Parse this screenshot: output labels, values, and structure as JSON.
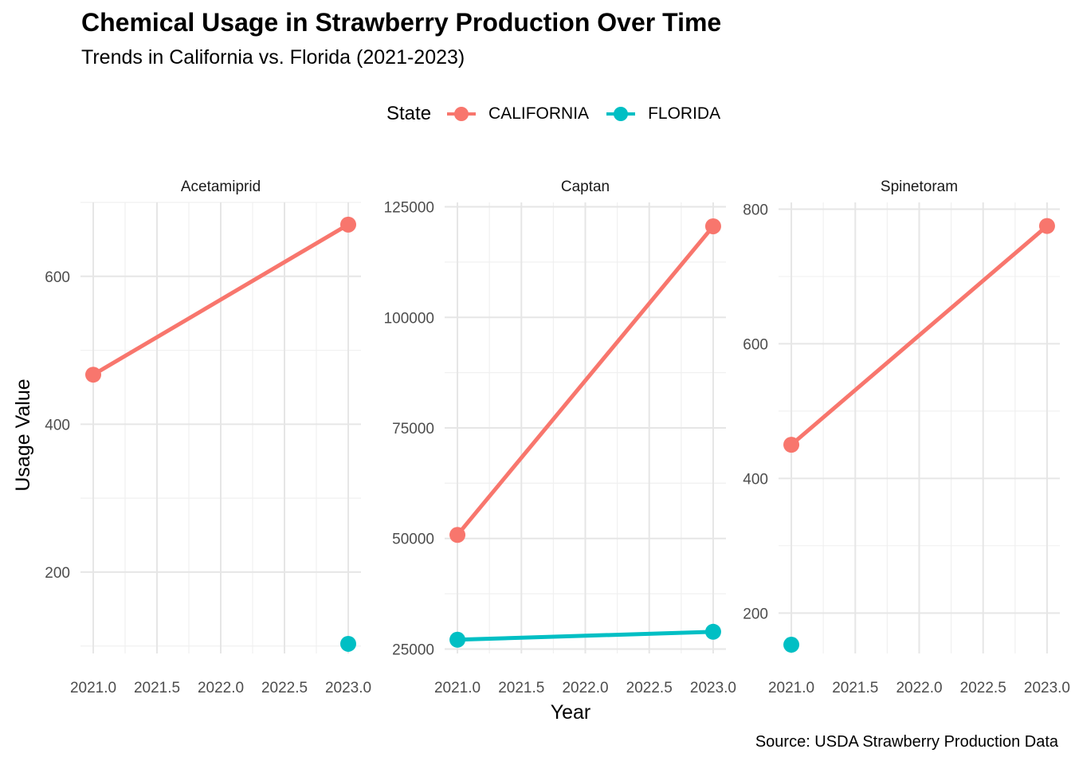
{
  "chart_data": {
    "type": "line",
    "title": "Chemical Usage in Strawberry Production Over Time",
    "subtitle": "Trends in California vs. Florida (2021-2023)",
    "xlabel": "Year",
    "ylabel": "Usage Value",
    "caption": "Source: USDA Strawberry Production Data",
    "legend": {
      "title": "State",
      "position": "top",
      "entries": [
        {
          "name": "CALIFORNIA",
          "color": "#F8766D"
        },
        {
          "name": "FLORIDA",
          "color": "#00BFC4"
        }
      ]
    },
    "x_ticks": [
      "2021.0",
      "2021.5",
      "2022.0",
      "2022.5",
      "2023.0"
    ],
    "xlim": [
      2021,
      2023
    ],
    "grid": true,
    "facets": [
      {
        "name": "Acetamiprid",
        "ylim": [
          90,
          700
        ],
        "y_ticks": [
          200,
          400,
          600
        ],
        "series": [
          {
            "name": "CALIFORNIA",
            "x": [
              2021,
              2023
            ],
            "y": [
              467,
              670
            ]
          },
          {
            "name": "FLORIDA",
            "x": [
              2023
            ],
            "y": [
              103
            ]
          }
        ]
      },
      {
        "name": "Captan",
        "ylim": [
          24000,
          126000
        ],
        "y_ticks": [
          25000,
          50000,
          75000,
          100000,
          125000
        ],
        "series": [
          {
            "name": "CALIFORNIA",
            "x": [
              2021,
              2023
            ],
            "y": [
              50800,
              120600
            ]
          },
          {
            "name": "FLORIDA",
            "x": [
              2021,
              2023
            ],
            "y": [
              27100,
              28900
            ]
          }
        ]
      },
      {
        "name": "Spinetoram",
        "ylim": [
          140,
          810
        ],
        "y_ticks": [
          200,
          400,
          600,
          800
        ],
        "series": [
          {
            "name": "CALIFORNIA",
            "x": [
              2021,
              2023
            ],
            "y": [
              450,
              775
            ]
          },
          {
            "name": "FLORIDA",
            "x": [
              2021
            ],
            "y": [
              153
            ]
          }
        ]
      }
    ]
  }
}
